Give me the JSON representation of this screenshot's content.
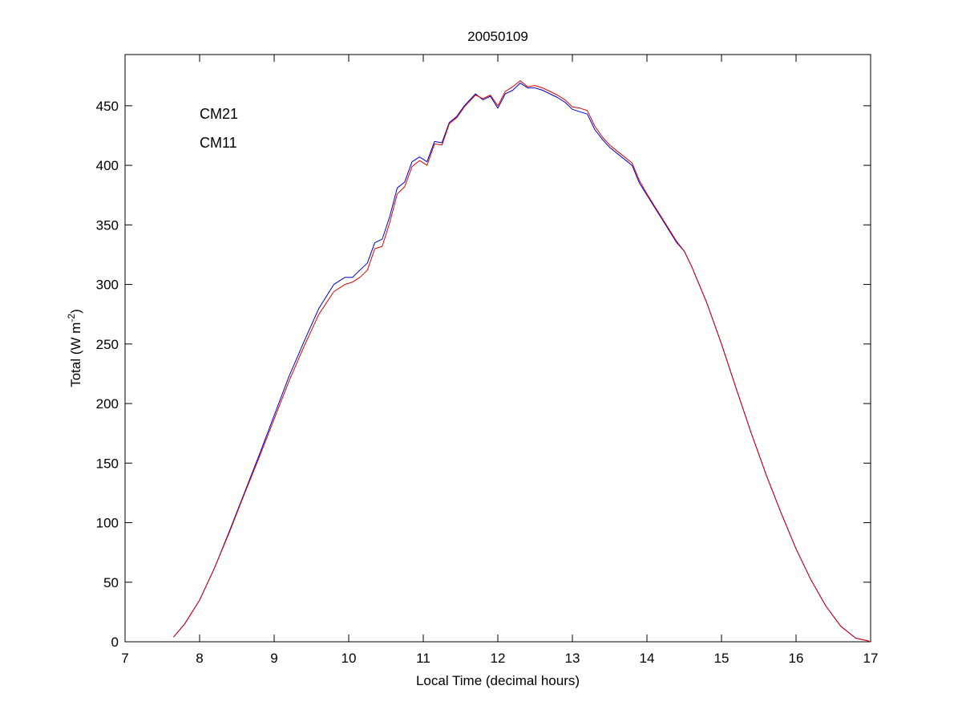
{
  "chart_data": {
    "type": "line",
    "title": "20050109",
    "xlabel": "Local Time (decimal hours)",
    "ylabel": {
      "main": "Total (W m",
      "sup": "-2",
      "close": ")"
    },
    "xlim": [
      7,
      17
    ],
    "ylim": [
      0,
      493
    ],
    "xticks": [
      7,
      8,
      9,
      10,
      11,
      12,
      13,
      14,
      15,
      16,
      17
    ],
    "yticks": [
      0,
      50,
      100,
      150,
      200,
      250,
      300,
      350,
      400,
      450
    ],
    "grid": false,
    "legend": {
      "placement": "top-left"
    },
    "series": [
      {
        "name": "CM21",
        "color": "#0000cc",
        "x": [
          7.65,
          7.8,
          8.0,
          8.2,
          8.4,
          8.6,
          8.8,
          9.0,
          9.2,
          9.4,
          9.6,
          9.8,
          9.95,
          10.05,
          10.15,
          10.25,
          10.35,
          10.45,
          10.55,
          10.65,
          10.75,
          10.85,
          10.95,
          11.05,
          11.15,
          11.25,
          11.35,
          11.45,
          11.55,
          11.7,
          11.8,
          11.9,
          12.0,
          12.1,
          12.2,
          12.3,
          12.4,
          12.5,
          12.6,
          12.7,
          12.8,
          12.9,
          13.0,
          13.1,
          13.2,
          13.3,
          13.4,
          13.5,
          13.6,
          13.7,
          13.8,
          13.9,
          14.0,
          14.1,
          14.2,
          14.3,
          14.4,
          14.5,
          14.6,
          14.8,
          15.0,
          15.2,
          15.4,
          15.6,
          15.8,
          16.0,
          16.2,
          16.4,
          16.6,
          16.8,
          16.95,
          17.0
        ],
        "y": [
          4,
          15,
          35,
          62,
          93,
          125,
          157,
          190,
          223,
          252,
          280,
          300,
          306,
          306,
          312,
          318,
          335,
          338,
          357,
          381,
          386,
          403,
          407,
          403,
          420,
          419,
          436,
          441,
          450,
          460,
          455,
          458,
          448,
          460,
          463,
          469,
          465,
          465,
          463,
          460,
          457,
          453,
          447,
          445,
          443,
          430,
          422,
          415,
          410,
          405,
          400,
          385,
          375,
          365,
          355,
          345,
          335,
          328,
          315,
          285,
          250,
          212,
          175,
          140,
          108,
          78,
          52,
          30,
          13,
          3,
          1,
          0
        ]
      },
      {
        "name": "CM11",
        "color": "#dd0000",
        "x": [
          7.65,
          7.8,
          8.0,
          8.2,
          8.4,
          8.6,
          8.8,
          9.0,
          9.2,
          9.4,
          9.6,
          9.8,
          9.95,
          10.05,
          10.15,
          10.25,
          10.35,
          10.45,
          10.55,
          10.65,
          10.75,
          10.85,
          10.95,
          11.05,
          11.15,
          11.25,
          11.35,
          11.45,
          11.55,
          11.7,
          11.8,
          11.9,
          12.0,
          12.1,
          12.2,
          12.3,
          12.4,
          12.5,
          12.6,
          12.7,
          12.8,
          12.9,
          13.0,
          13.1,
          13.2,
          13.3,
          13.4,
          13.5,
          13.6,
          13.7,
          13.8,
          13.9,
          14.0,
          14.1,
          14.2,
          14.3,
          14.4,
          14.5,
          14.6,
          14.8,
          15.0,
          15.2,
          15.4,
          15.6,
          15.8,
          16.0,
          16.2,
          16.4,
          16.6,
          16.8,
          16.95,
          17.0
        ],
        "y": [
          4,
          15,
          35,
          62,
          92,
          124,
          155,
          187,
          219,
          248,
          275,
          294,
          300,
          302,
          306,
          312,
          330,
          332,
          352,
          376,
          382,
          399,
          404,
          400,
          418,
          417,
          435,
          440,
          449,
          459,
          456,
          459,
          450,
          462,
          466,
          471,
          466,
          467,
          465,
          462,
          459,
          455,
          449,
          448,
          446,
          433,
          424,
          417,
          412,
          407,
          402,
          387,
          376,
          366,
          356,
          346,
          336,
          328,
          315,
          285,
          250,
          212,
          175,
          140,
          108,
          78,
          52,
          30,
          13,
          3,
          1,
          0
        ]
      }
    ]
  }
}
